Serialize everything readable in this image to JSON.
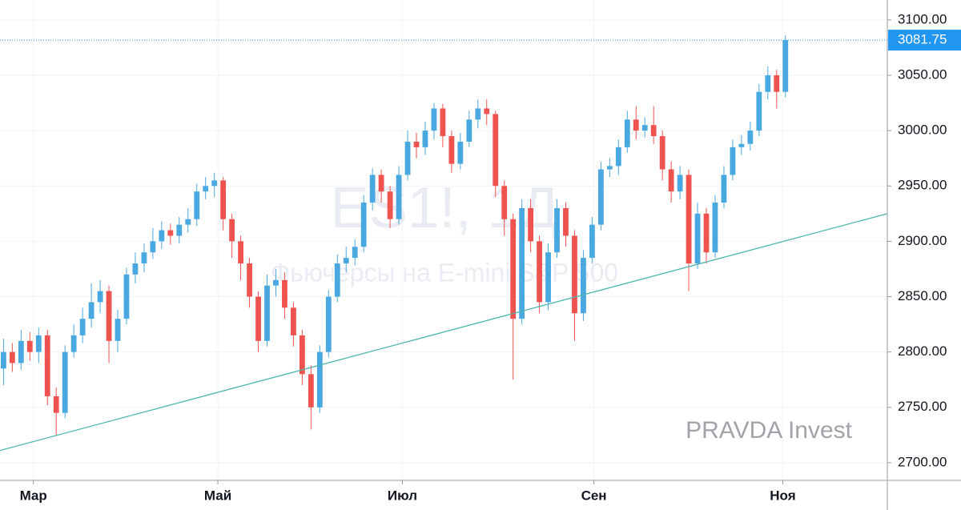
{
  "chart_data": {
    "type": "candlestick",
    "watermark_symbol": "ES1!, 1Д",
    "watermark_description": "Фьючерсы на E-mini S&P 500",
    "annotation": "PRAVDA Invest",
    "up_color": "#4aa8e0",
    "down_color": "#ef5350",
    "grid": true,
    "xlim": [
      -0.4,
      100.6
    ],
    "xticks": [
      {
        "value": 3.4,
        "label": "Мар"
      },
      {
        "value": 24.4,
        "label": "Май"
      },
      {
        "value": 45.4,
        "label": "Июл"
      },
      {
        "value": 67.2,
        "label": "Сен"
      },
      {
        "value": 88.7,
        "label": "Ноя"
      }
    ],
    "ylim": [
      2684,
      3118
    ],
    "yticks": [
      {
        "value": 2700,
        "label": "2700.00"
      },
      {
        "value": 2750,
        "label": "2750.00"
      },
      {
        "value": 2800,
        "label": "2800.00"
      },
      {
        "value": 2850,
        "label": "2850.00"
      },
      {
        "value": 2900,
        "label": "2900.00"
      },
      {
        "value": 2950,
        "label": "2950.00"
      },
      {
        "value": 3000,
        "label": "3000.00"
      },
      {
        "value": 3050,
        "label": "3050.00"
      },
      {
        "value": 3100,
        "label": "3100.00"
      }
    ],
    "last_price": 3081.75,
    "last_price_color": "#2196f3",
    "trendline": {
      "x": [
        -0.4,
        100.6
      ],
      "y": [
        2711,
        2925
      ],
      "color": "#4db6ac"
    },
    "open": [
      2785,
      2800,
      2790,
      2810,
      2800,
      2815,
      2760,
      2745,
      2800,
      2815,
      2830,
      2845,
      2855,
      2810,
      2830,
      2870,
      2880,
      2890,
      2900,
      2910,
      2905,
      2915,
      2920,
      2945,
      2950,
      2955,
      2920,
      2900,
      2880,
      2850,
      2810,
      2860,
      2865,
      2840,
      2815,
      2780,
      2750,
      2800,
      2850,
      2880,
      2885,
      2895,
      2935,
      2960,
      2945,
      2920,
      2960,
      2990,
      2985,
      3000,
      3020,
      2995,
      2970,
      2990,
      3010,
      3020,
      3015,
      2950,
      2920,
      2830,
      2930,
      2900,
      2845,
      2890,
      2930,
      2905,
      2835,
      2885,
      2915,
      2965,
      2968,
      2985,
      3010,
      3000,
      3005,
      2995,
      2965,
      2945,
      2960,
      2880,
      2925,
      2890,
      2935,
      2960,
      2985,
      2988,
      3000,
      3035,
      3050,
      3035
    ],
    "high": [
      2812,
      2808,
      2820,
      2818,
      2822,
      2820,
      2768,
      2806,
      2825,
      2840,
      2862,
      2865,
      2860,
      2838,
      2876,
      2890,
      2898,
      2912,
      2918,
      2916,
      2922,
      2930,
      2952,
      2958,
      2962,
      2958,
      2925,
      2905,
      2885,
      2855,
      2870,
      2875,
      2872,
      2845,
      2820,
      2788,
      2806,
      2856,
      2888,
      2895,
      2902,
      2942,
      2966,
      2965,
      2950,
      2968,
      3000,
      2998,
      3008,
      3025,
      3024,
      3000,
      2998,
      3018,
      3028,
      3028,
      3018,
      2955,
      2925,
      2938,
      2938,
      2905,
      2898,
      2938,
      2935,
      2910,
      2892,
      2922,
      2972,
      2975,
      2992,
      3018,
      3022,
      3012,
      3022,
      3000,
      2972,
      2968,
      2965,
      2935,
      2930,
      2942,
      2968,
      2992,
      2996,
      3008,
      3042,
      3058,
      3055,
      3086
    ],
    "low": [
      2770,
      2782,
      2784,
      2792,
      2790,
      2752,
      2725,
      2740,
      2795,
      2808,
      2822,
      2835,
      2790,
      2800,
      2825,
      2862,
      2872,
      2884,
      2893,
      2897,
      2898,
      2908,
      2914,
      2938,
      2940,
      2910,
      2885,
      2865,
      2840,
      2800,
      2805,
      2850,
      2830,
      2805,
      2770,
      2730,
      2745,
      2795,
      2845,
      2872,
      2878,
      2890,
      2928,
      2935,
      2912,
      2915,
      2955,
      2975,
      2978,
      2992,
      2985,
      2962,
      2965,
      2985,
      3002,
      3005,
      2940,
      2905,
      2775,
      2825,
      2890,
      2835,
      2838,
      2885,
      2895,
      2810,
      2828,
      2880,
      2910,
      2958,
      2960,
      2980,
      2992,
      2994,
      2988,
      2955,
      2935,
      2938,
      2855,
      2875,
      2880,
      2885,
      2930,
      2955,
      2978,
      2982,
      2995,
      3028,
      3020,
      3030
    ],
    "close": [
      2800,
      2790,
      2810,
      2800,
      2815,
      2760,
      2745,
      2800,
      2815,
      2830,
      2845,
      2855,
      2810,
      2830,
      2870,
      2880,
      2890,
      2900,
      2910,
      2905,
      2915,
      2920,
      2945,
      2950,
      2955,
      2920,
      2900,
      2880,
      2850,
      2810,
      2860,
      2865,
      2840,
      2815,
      2780,
      2750,
      2800,
      2850,
      2880,
      2885,
      2895,
      2935,
      2960,
      2945,
      2920,
      2960,
      2990,
      2985,
      3000,
      3020,
      2995,
      2970,
      2990,
      3010,
      3020,
      3015,
      2950,
      2920,
      2830,
      2930,
      2900,
      2845,
      2890,
      2930,
      2905,
      2835,
      2885,
      2915,
      2965,
      2968,
      2985,
      3010,
      3000,
      3005,
      2995,
      2965,
      2945,
      2960,
      2880,
      2925,
      2890,
      2935,
      2960,
      2985,
      2988,
      3000,
      3035,
      3050,
      3035,
      3081.75
    ]
  }
}
